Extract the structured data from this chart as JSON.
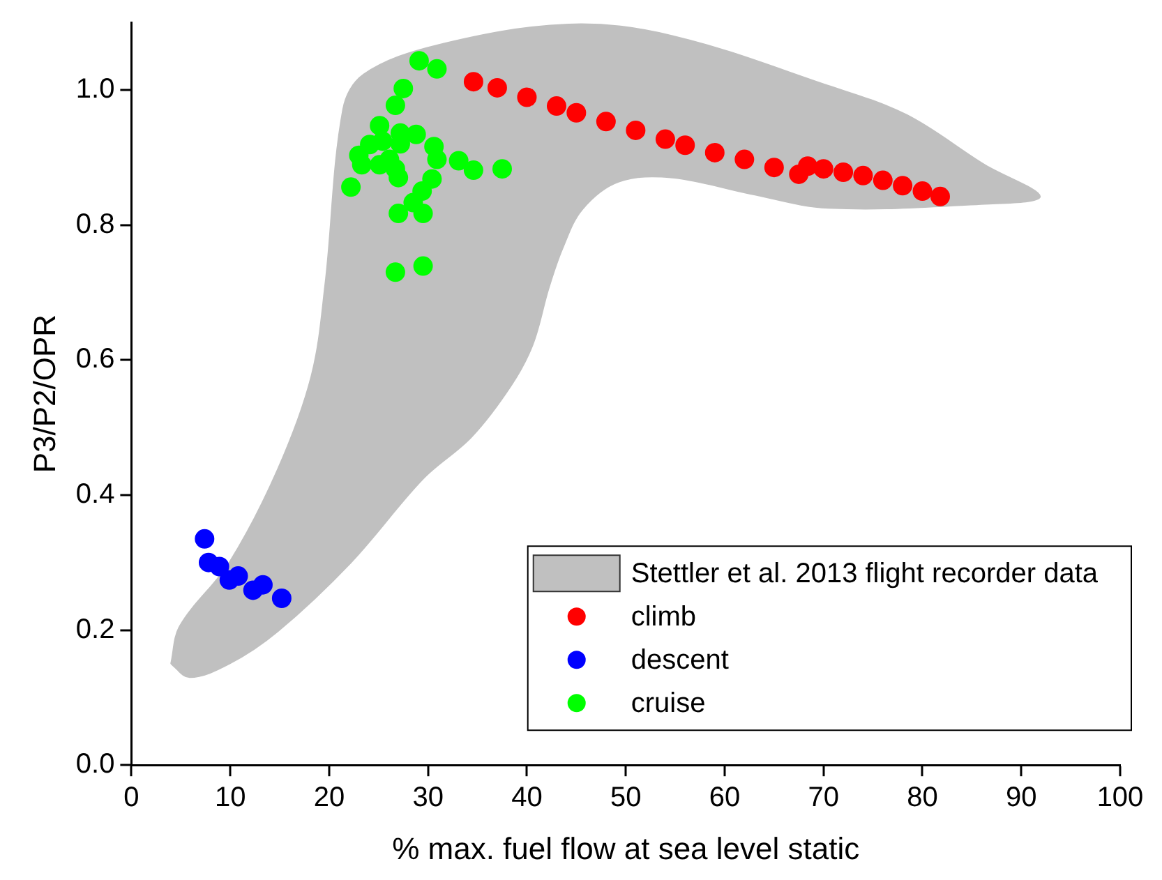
{
  "chart_data": {
    "type": "scatter",
    "xlabel": "% max. fuel flow at sea level static",
    "ylabel": "P3/P2/OPR",
    "xlim": [
      0,
      100
    ],
    "ylim": [
      0,
      1.1
    ],
    "xticks": [
      0,
      10,
      20,
      30,
      40,
      50,
      60,
      70,
      80,
      90,
      100
    ],
    "yticks": [
      {
        "value": 0,
        "label": "0.0"
      },
      {
        "value": 0.2,
        "label": "0.2"
      },
      {
        "value": 0.4,
        "label": "0.4"
      },
      {
        "value": 0.6,
        "label": "0.6"
      },
      {
        "value": 0.8,
        "label": "0.8"
      },
      {
        "value": 1,
        "label": "1.0"
      }
    ],
    "grid": false,
    "legend": "bottom right",
    "marker": "circle",
    "series": [
      {
        "name": "Stettler et al. 2013 flight recorder data",
        "type": "area",
        "marker": "none",
        "color": "#c0c0c0",
        "x": [
          4.0,
          4.9,
          9.9,
          14.8,
          18.2,
          19.6,
          21.4,
          23.5,
          30.9,
          44.2,
          54.7,
          70.5,
          78.4,
          86.3,
          91.9,
          86.3,
          70.5,
          62.6,
          54.7,
          49.3,
          45.6,
          43.6,
          42.2,
          40.6,
          38.4,
          34.4,
          29.5,
          22.2,
          14.8,
          9.9,
          5.9,
          4.0
        ],
        "values": [
          0.15,
          0.206,
          0.3,
          0.438,
          0.576,
          0.712,
          0.971,
          1.023,
          1.066,
          1.097,
          1.08,
          1.006,
          0.963,
          0.889,
          0.842,
          0.831,
          0.825,
          0.846,
          0.87,
          0.864,
          0.823,
          0.765,
          0.706,
          0.623,
          0.562,
          0.486,
          0.424,
          0.3,
          0.198,
          0.15,
          0.13,
          0.15
        ]
      },
      {
        "name": "climb",
        "color": "#ff0000",
        "x": [
          34.6,
          37,
          40,
          43,
          45,
          48,
          51,
          54,
          56,
          59,
          62,
          65,
          67.5,
          68.4,
          70,
          72,
          74,
          76,
          78,
          80,
          81.8
        ],
        "values": [
          1.012,
          1.003,
          0.989,
          0.976,
          0.966,
          0.953,
          0.94,
          0.927,
          0.918,
          0.907,
          0.897,
          0.885,
          0.875,
          0.887,
          0.883,
          0.878,
          0.873,
          0.866,
          0.858,
          0.85,
          0.842
        ]
      },
      {
        "name": "descent",
        "color": "#0000ff",
        "x": [
          7.4,
          7.8,
          8.9,
          9.9,
          10.8,
          12.3,
          13.3,
          15.2
        ],
        "values": [
          0.335,
          0.3,
          0.294,
          0.274,
          0.28,
          0.259,
          0.267,
          0.247
        ]
      },
      {
        "name": "cruise",
        "color": "#00ff00",
        "x": [
          29.1,
          30.9,
          27.5,
          26.7,
          25.1,
          25.4,
          24.1,
          23.0,
          23.3,
          25.1,
          27.2,
          28.8,
          27.2,
          30.6,
          26.1,
          30.9,
          33.1,
          26.7,
          34.6,
          37.5,
          27.0,
          30.4,
          29.4,
          28.5,
          27.0,
          29.5,
          22.2,
          26.7,
          29.5
        ],
        "values": [
          1.043,
          1.031,
          1.002,
          0.977,
          0.947,
          0.924,
          0.919,
          0.903,
          0.889,
          0.889,
          0.936,
          0.934,
          0.92,
          0.916,
          0.897,
          0.897,
          0.895,
          0.883,
          0.881,
          0.883,
          0.87,
          0.868,
          0.85,
          0.833,
          0.817,
          0.817,
          0.856,
          0.73,
          0.739
        ]
      }
    ]
  }
}
